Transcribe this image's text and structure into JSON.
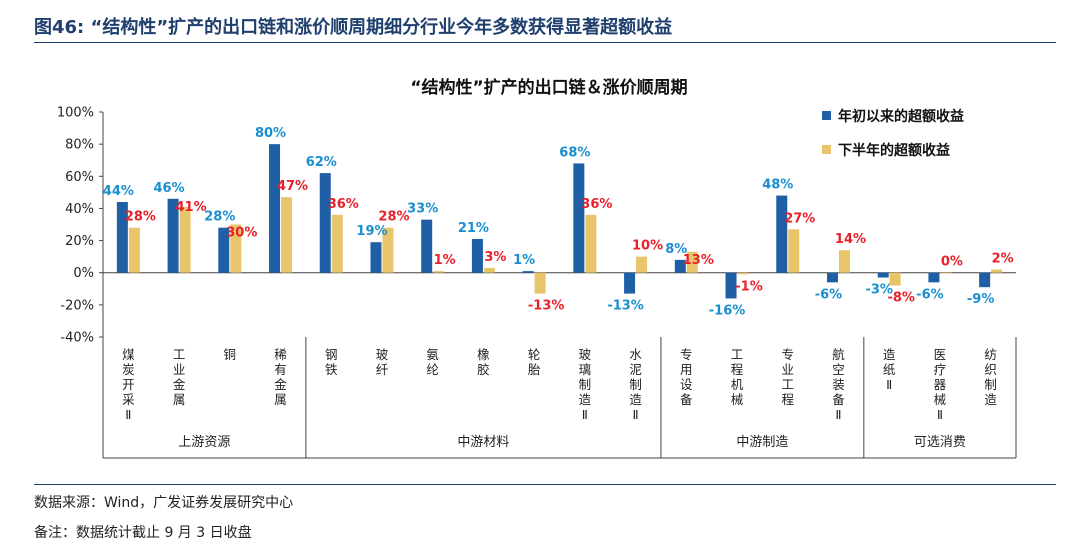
{
  "header": {
    "figure_title": "图46:   “结构性”扩产的出口链和涨价顺周期细分行业今年多数获得显著超额收益"
  },
  "footer": {
    "source": "数据来源：Wind，广发证券发展研究中心",
    "note": "备注：数据统计截止 9 月 3 日收盘"
  },
  "colors": {
    "series1": "#1f5fa5",
    "series2": "#e8c46a",
    "label1": "#1a8fd0",
    "label2": "#e8202a"
  },
  "chart_data": {
    "type": "bar",
    "title": "“结构性”扩产的出口链＆涨价顺周期",
    "ylim": [
      -40,
      100
    ],
    "yticks": [
      -40,
      -20,
      0,
      20,
      40,
      60,
      80,
      100
    ],
    "ytick_labels": [
      "-40%",
      "-20%",
      "0%",
      "20%",
      "40%",
      "60%",
      "80%",
      "100%"
    ],
    "categories": [
      "煤炭开采Ⅱ",
      "工业金属",
      "铜",
      "稀有金属",
      "钢铁",
      "玻纤",
      "氨纶",
      "橡胶",
      "轮胎",
      "玻璃制造Ⅱ",
      "水泥制造Ⅱ",
      "专用设备",
      "工程机械",
      "专业工程",
      "航空装备Ⅱ",
      "造纸Ⅱ",
      "医疗器械Ⅱ",
      "纺织制造"
    ],
    "series": [
      {
        "name": "年初以来的超额收益",
        "values": [
          44,
          46,
          28,
          80,
          62,
          19,
          33,
          21,
          1,
          68,
          -13,
          8,
          -16,
          48,
          -6,
          -3,
          -6,
          -9
        ],
        "labels": [
          "44%",
          "46%",
          "28%",
          "80%",
          "62%",
          "19%",
          "33%",
          "21%",
          "1%",
          "68%",
          "-13%",
          "8%",
          "-16%",
          "48%",
          "-6%",
          "-3%",
          "-6%",
          "-9%"
        ]
      },
      {
        "name": "下半年的超额收益",
        "values": [
          28,
          41,
          30,
          47,
          36,
          28,
          1,
          3,
          -13,
          36,
          10,
          13,
          -1,
          27,
          14,
          -8,
          0,
          2
        ],
        "labels": [
          "28%",
          "41%",
          "30%",
          "47%",
          "36%",
          "28%",
          "1%",
          "3%",
          "-13%",
          "36%",
          "10%",
          "13%",
          "-1%",
          "27%",
          "14%",
          "-8%",
          "0%",
          "2%"
        ]
      }
    ],
    "groups": [
      {
        "name": "上游资源",
        "start": 0,
        "end": 3
      },
      {
        "name": "中游材料",
        "start": 4,
        "end": 10
      },
      {
        "name": "中游制造",
        "start": 11,
        "end": 14
      },
      {
        "name": "可选消费",
        "start": 15,
        "end": 17
      }
    ],
    "legend_position": "top-right",
    "grid": false
  }
}
